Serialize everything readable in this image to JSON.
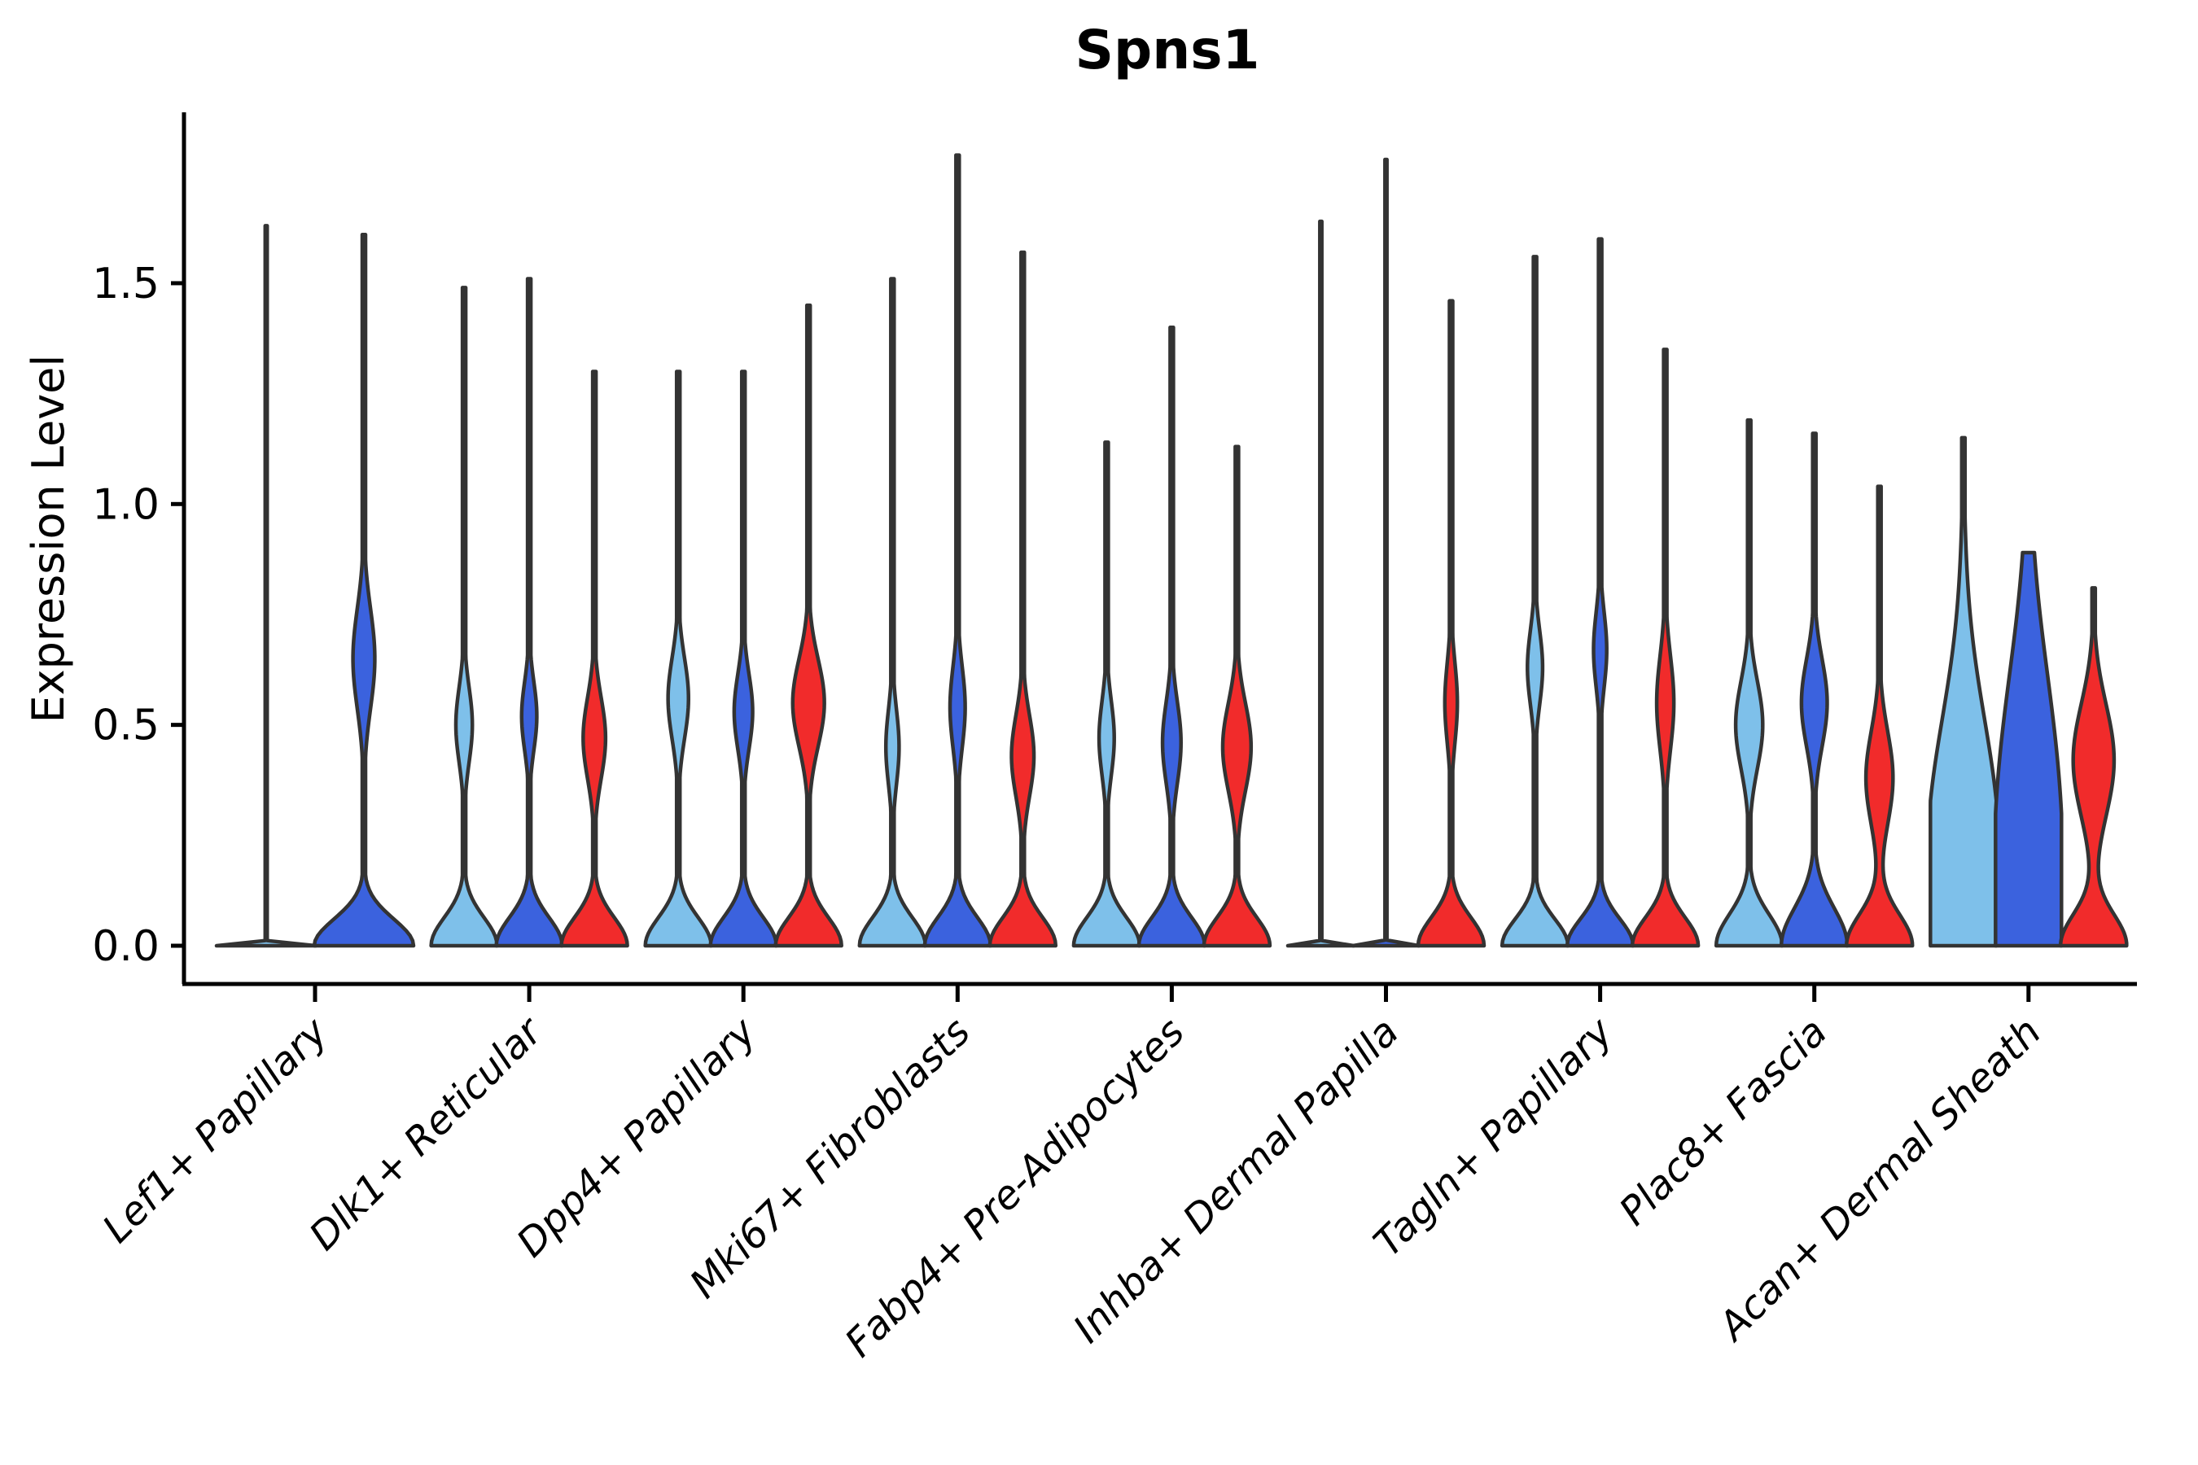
{
  "chart_data": {
    "type": "violin",
    "title": "Spns1",
    "ylabel": "Expression Level",
    "xlabel": "",
    "grid": false,
    "legend": "none",
    "ylim": [
      -0.09,
      1.89
    ],
    "y_ticks": [
      0.0,
      0.5,
      1.0,
      1.5
    ],
    "y_tick_labels": [
      "0.0",
      "0.5",
      "1.0",
      "1.5"
    ],
    "palette": {
      "light": "#7EC0EA",
      "dark": "#3B62DE",
      "red": "#F12B2B"
    },
    "outline_color": "#333333",
    "axis_color": "#000000",
    "categories": [
      "Lef1+ Papillary",
      "Dlk1+ Reticular",
      "Dpp4+ Papillary",
      "Mki67+ Fibroblasts",
      "Fabp4+ Pre-Adipocytes",
      "Inhba+ Dermal Papilla",
      "Tagln+ Papillary",
      "Plac8+ Fascia",
      "Acan+ Dermal Sheath"
    ],
    "groups": [
      {
        "label": "Lef1+ Papillary",
        "violins": [
          {
            "color": "light",
            "max": 1.63,
            "offset": -60,
            "halfwidth": 61,
            "profile": {
              "sb": 0.003,
              "stem": 1.2,
              "bulge": null
            }
          },
          {
            "color": "dark",
            "max": 1.61,
            "offset": 60,
            "halfwidth": 61,
            "profile": {
              "sb": 0.085,
              "stem": 2,
              "bulge": [
                0.65,
                0.16,
                0.22
              ]
            }
          }
        ]
      },
      {
        "label": "Dlk1+ Reticular",
        "violins": [
          {
            "color": "light",
            "max": 1.49,
            "offset": -80,
            "halfwidth": 40.5,
            "profile": {
              "sb": 0.09,
              "stem": 2,
              "bulge": [
                0.5,
                0.12,
                0.25
              ]
            }
          },
          {
            "color": "dark",
            "max": 1.51,
            "offset": 0,
            "halfwidth": 40.5,
            "profile": {
              "sb": 0.09,
              "stem": 2,
              "bulge": [
                0.52,
                0.11,
                0.23
              ]
            }
          },
          {
            "color": "red",
            "max": 1.3,
            "offset": 80,
            "halfwidth": 40.5,
            "profile": {
              "sb": 0.09,
              "stem": 2,
              "bulge": [
                0.47,
                0.13,
                0.34
              ]
            }
          }
        ]
      },
      {
        "label": "Dpp4+ Papillary",
        "violins": [
          {
            "color": "light",
            "max": 1.3,
            "offset": -80,
            "halfwidth": 40.5,
            "profile": {
              "sb": 0.09,
              "stem": 2,
              "bulge": [
                0.56,
                0.13,
                0.31
              ]
            }
          },
          {
            "color": "dark",
            "max": 1.3,
            "offset": 0,
            "halfwidth": 40.5,
            "profile": {
              "sb": 0.09,
              "stem": 2,
              "bulge": [
                0.53,
                0.12,
                0.28
              ]
            }
          },
          {
            "color": "red",
            "max": 1.45,
            "offset": 80,
            "halfwidth": 40.5,
            "profile": {
              "sb": 0.09,
              "stem": 2,
              "bulge": [
                0.55,
                0.14,
                0.48
              ]
            }
          }
        ]
      },
      {
        "label": "Mki67+ Fibroblasts",
        "violins": [
          {
            "color": "light",
            "max": 1.51,
            "offset": -80,
            "halfwidth": 40.5,
            "profile": {
              "sb": 0.09,
              "stem": 2,
              "bulge": [
                0.45,
                0.12,
                0.2
              ]
            }
          },
          {
            "color": "dark",
            "max": 1.79,
            "offset": 0,
            "halfwidth": 40.5,
            "profile": {
              "sb": 0.09,
              "stem": 2,
              "bulge": [
                0.54,
                0.13,
                0.23
              ]
            }
          },
          {
            "color": "red",
            "max": 1.57,
            "offset": 80,
            "halfwidth": 40.5,
            "profile": {
              "sb": 0.09,
              "stem": 2,
              "bulge": [
                0.43,
                0.13,
                0.34
              ]
            }
          }
        ]
      },
      {
        "label": "Fabp4+ Pre-Adipocytes",
        "violins": [
          {
            "color": "light",
            "max": 1.14,
            "offset": -80,
            "halfwidth": 40.5,
            "profile": {
              "sb": 0.09,
              "stem": 2,
              "bulge": [
                0.47,
                0.12,
                0.23
              ]
            }
          },
          {
            "color": "dark",
            "max": 1.4,
            "offset": 0,
            "halfwidth": 40.5,
            "profile": {
              "sb": 0.09,
              "stem": 2,
              "bulge": [
                0.46,
                0.13,
                0.28
              ]
            }
          },
          {
            "color": "red",
            "max": 1.13,
            "offset": 80,
            "halfwidth": 40.5,
            "profile": {
              "sb": 0.09,
              "stem": 2,
              "bulge": [
                0.45,
                0.14,
                0.43
              ]
            }
          }
        ]
      },
      {
        "label": "Inhba+ Dermal Papilla",
        "violins": [
          {
            "color": "light",
            "max": 1.64,
            "offset": -80,
            "halfwidth": 40.5,
            "profile": {
              "sb": 0.003,
              "stem": 1.2,
              "bulge": null
            }
          },
          {
            "color": "dark",
            "max": 1.78,
            "offset": 0,
            "halfwidth": 40.5,
            "profile": {
              "sb": 0.003,
              "stem": 1.2,
              "bulge": null
            }
          },
          {
            "color": "red",
            "max": 1.46,
            "offset": 80,
            "halfwidth": 40.5,
            "profile": {
              "sb": 0.09,
              "stem": 2,
              "bulge": [
                0.55,
                0.13,
                0.19
              ]
            }
          }
        ]
      },
      {
        "label": "Tagln+ Papillary",
        "violins": [
          {
            "color": "light",
            "max": 1.56,
            "offset": -80,
            "halfwidth": 40.5,
            "profile": {
              "sb": 0.085,
              "stem": 2,
              "bulge": [
                0.63,
                0.12,
                0.23
              ]
            }
          },
          {
            "color": "dark",
            "max": 1.6,
            "offset": 0,
            "halfwidth": 40.5,
            "profile": {
              "sb": 0.085,
              "stem": 2,
              "bulge": [
                0.67,
                0.12,
                0.2
              ]
            }
          },
          {
            "color": "red",
            "max": 1.35,
            "offset": 80,
            "halfwidth": 40.5,
            "profile": {
              "sb": 0.09,
              "stem": 2,
              "bulge": [
                0.55,
                0.15,
                0.26
              ]
            }
          }
        ]
      },
      {
        "label": "Plac8+ Fascia",
        "violins": [
          {
            "color": "light",
            "max": 1.19,
            "offset": -80,
            "halfwidth": 40.5,
            "profile": {
              "sb": 0.1,
              "stem": 2,
              "bulge": [
                0.5,
                0.14,
                0.41
              ]
            }
          },
          {
            "color": "dark",
            "max": 1.16,
            "offset": 0,
            "halfwidth": 40.5,
            "profile": {
              "sb": 0.12,
              "stem": 2,
              "bulge": [
                0.55,
                0.14,
                0.39
              ]
            }
          },
          {
            "color": "red",
            "max": 1.04,
            "offset": 80,
            "halfwidth": 40.5,
            "profile": {
              "sb": 0.1,
              "stem": 2,
              "bulge": [
                0.38,
                0.15,
                0.41
              ]
            }
          }
        ]
      },
      {
        "label": "Acan+ Dermal Sheath",
        "violins": [
          {
            "color": "light",
            "max": 1.15,
            "offset": -80,
            "halfwidth": 40.5,
            "profile": {
              "sb": 0.55,
              "stem": 2,
              "bulge": [
                0.35,
                0.3,
                0.3
              ]
            }
          },
          {
            "color": "dark",
            "max": 0.89,
            "offset": 0,
            "halfwidth": 40.5,
            "profile": {
              "sb": 0.62,
              "stem": 2,
              "bulge": [
                0.45,
                0.35,
                0.25
              ]
            }
          },
          {
            "color": "red",
            "max": 0.81,
            "offset": 80,
            "halfwidth": 40.5,
            "profile": {
              "sb": 0.1,
              "stem": 2,
              "bulge": [
                0.42,
                0.18,
                0.62
              ]
            }
          }
        ]
      }
    ]
  }
}
